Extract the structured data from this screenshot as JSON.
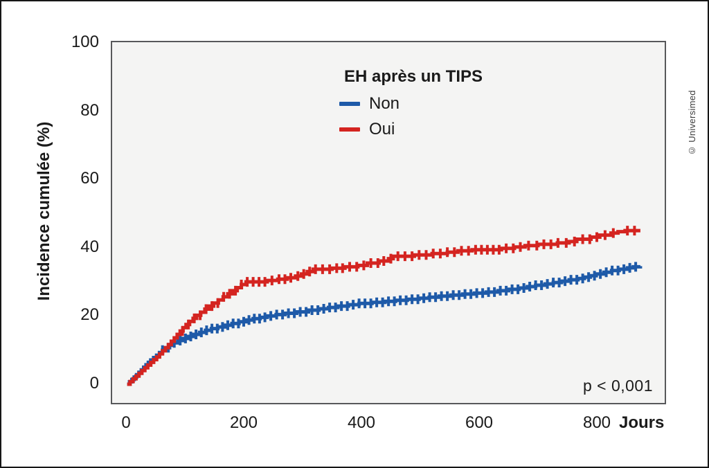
{
  "figure": {
    "credit": "© Universimed",
    "p_value_label": "p < 0,001"
  },
  "legend": {
    "title": "EH après un TIPS",
    "items": [
      {
        "label": "Non",
        "color": "#1e5aa8"
      },
      {
        "label": "Oui",
        "color": "#d42420"
      }
    ]
  },
  "chart_data": {
    "type": "line",
    "subtype": "cumulative-incidence-step-curves-with-censor-marks",
    "title": "EH après un TIPS",
    "xlabel": "Jours",
    "ylabel": "Incidence cumulée (%)",
    "xlim": [
      0,
      918
    ],
    "ylim": [
      0,
      100
    ],
    "x_ticks": [
      0,
      200,
      400,
      600,
      800
    ],
    "y_ticks": [
      0,
      20,
      40,
      60,
      80,
      100
    ],
    "grid": false,
    "legend_position": "top-center-inside",
    "annotation": "p < 0,001",
    "series": [
      {
        "name": "Non",
        "color": "#1e5aa8",
        "points": [
          [
            2,
            0
          ],
          [
            6,
            0.7
          ],
          [
            10,
            1.4
          ],
          [
            14,
            2.1
          ],
          [
            18,
            2.8
          ],
          [
            22,
            3.5
          ],
          [
            26,
            4.2
          ],
          [
            30,
            5
          ],
          [
            34,
            5.7
          ],
          [
            38,
            6.4
          ],
          [
            42,
            7.1
          ],
          [
            47,
            7.8
          ],
          [
            52,
            8.5
          ],
          [
            57,
            9.3
          ],
          [
            62,
            10
          ],
          [
            68,
            10.7
          ],
          [
            74,
            11.4
          ],
          [
            81,
            12.1
          ],
          [
            88,
            12.8
          ],
          [
            96,
            13.4
          ],
          [
            105,
            14
          ],
          [
            115,
            14.6
          ],
          [
            125,
            15.2
          ],
          [
            135,
            15.8
          ],
          [
            145,
            16.3
          ],
          [
            156,
            16.8
          ],
          [
            168,
            17.3
          ],
          [
            180,
            17.8
          ],
          [
            192,
            18.3
          ],
          [
            205,
            18.8
          ],
          [
            216,
            19.2
          ],
          [
            228,
            19.6
          ],
          [
            240,
            20
          ],
          [
            255,
            20.4
          ],
          [
            270,
            20.8
          ],
          [
            290,
            21.2
          ],
          [
            310,
            21.7
          ],
          [
            328,
            22.1
          ],
          [
            344,
            22.5
          ],
          [
            360,
            22.9
          ],
          [
            378,
            23.3
          ],
          [
            396,
            23.7
          ],
          [
            418,
            24
          ],
          [
            440,
            24.3
          ],
          [
            458,
            24.6
          ],
          [
            478,
            24.9
          ],
          [
            498,
            25.2
          ],
          [
            515,
            25.5
          ],
          [
            532,
            25.8
          ],
          [
            552,
            26.1
          ],
          [
            572,
            26.4
          ],
          [
            592,
            26.7
          ],
          [
            612,
            27
          ],
          [
            632,
            27.4
          ],
          [
            650,
            27.8
          ],
          [
            668,
            28.2
          ],
          [
            682,
            28.6
          ],
          [
            696,
            29
          ],
          [
            712,
            29.4
          ],
          [
            726,
            29.8
          ],
          [
            740,
            30.2
          ],
          [
            753,
            30.6
          ],
          [
            768,
            31
          ],
          [
            779,
            31.4
          ],
          [
            789,
            31.8
          ],
          [
            799,
            32.3
          ],
          [
            812,
            32.8
          ],
          [
            825,
            33.3
          ],
          [
            838,
            33.7
          ],
          [
            852,
            34.1
          ],
          [
            862,
            34.4
          ],
          [
            874,
            34.6
          ]
        ],
        "censor_days": [
          62,
          72,
          82,
          92,
          101,
          110,
          119,
          128,
          137,
          146,
          155,
          164,
          173,
          182,
          191,
          200,
          209,
          218,
          227,
          236,
          246,
          256,
          266,
          276,
          286,
          296,
          306,
          316,
          326,
          336,
          346,
          356,
          366,
          376,
          386,
          396,
          406,
          416,
          426,
          436,
          446,
          456,
          466,
          476,
          486,
          496,
          506,
          516,
          526,
          536,
          546,
          556,
          566,
          576,
          586,
          596,
          606,
          616,
          626,
          636,
          646,
          656,
          666,
          676,
          686,
          696,
          706,
          716,
          726,
          736,
          746,
          756,
          766,
          776,
          786,
          796,
          806,
          816,
          826,
          836,
          846,
          856,
          866
        ]
      },
      {
        "name": "Oui",
        "color": "#d42420",
        "points": [
          [
            2,
            0
          ],
          [
            7,
            0.8
          ],
          [
            12,
            1.6
          ],
          [
            17,
            2.4
          ],
          [
            22,
            3.2
          ],
          [
            27,
            4
          ],
          [
            32,
            4.8
          ],
          [
            37,
            5.6
          ],
          [
            42,
            6.4
          ],
          [
            47,
            7.2
          ],
          [
            52,
            8
          ],
          [
            57,
            8.9
          ],
          [
            62,
            9.8
          ],
          [
            67,
            10.7
          ],
          [
            72,
            11.6
          ],
          [
            77,
            12.6
          ],
          [
            82,
            13.6
          ],
          [
            87,
            14.6
          ],
          [
            92,
            15.6
          ],
          [
            97,
            16.6
          ],
          [
            102,
            17.5
          ],
          [
            108,
            18.4
          ],
          [
            114,
            19.3
          ],
          [
            120,
            20.2
          ],
          [
            127,
            21.1
          ],
          [
            134,
            22
          ],
          [
            141,
            22.9
          ],
          [
            149,
            23.8
          ],
          [
            157,
            24.7
          ],
          [
            165,
            25.6
          ],
          [
            173,
            26.5
          ],
          [
            181,
            27.4
          ],
          [
            189,
            28.3
          ],
          [
            196,
            29.2
          ],
          [
            204,
            30
          ],
          [
            240,
            30.4
          ],
          [
            258,
            30.8
          ],
          [
            274,
            31.2
          ],
          [
            288,
            31.7
          ],
          [
            298,
            32.3
          ],
          [
            308,
            33
          ],
          [
            318,
            33.7
          ],
          [
            350,
            34
          ],
          [
            372,
            34.4
          ],
          [
            394,
            34.8
          ],
          [
            410,
            35.5
          ],
          [
            430,
            36.1
          ],
          [
            446,
            36.8
          ],
          [
            454,
            37.5
          ],
          [
            490,
            37.9
          ],
          [
            520,
            38.3
          ],
          [
            546,
            38.7
          ],
          [
            564,
            39.1
          ],
          [
            588,
            39.4
          ],
          [
            638,
            39.8
          ],
          [
            660,
            40.2
          ],
          [
            678,
            40.6
          ],
          [
            700,
            41
          ],
          [
            733,
            41.4
          ],
          [
            753,
            41.8
          ],
          [
            766,
            42.5
          ],
          [
            790,
            43.1
          ],
          [
            805,
            43.7
          ],
          [
            824,
            44.3
          ],
          [
            836,
            44.7
          ],
          [
            848,
            45
          ],
          [
            874,
            45
          ]
        ],
        "censor_days": [
          96,
          106,
          116,
          126,
          136,
          146,
          156,
          166,
          176,
          186,
          196,
          206,
          216,
          226,
          236,
          248,
          260,
          270,
          280,
          292,
          302,
          312,
          322,
          334,
          346,
          358,
          368,
          380,
          392,
          404,
          416,
          428,
          438,
          450,
          462,
          474,
          486,
          498,
          510,
          522,
          534,
          546,
          558,
          570,
          582,
          594,
          604,
          614,
          624,
          634,
          646,
          658,
          670,
          684,
          698,
          710,
          722,
          734,
          748,
          762,
          776,
          788,
          800,
          814,
          828,
          852,
          864
        ]
      }
    ]
  }
}
